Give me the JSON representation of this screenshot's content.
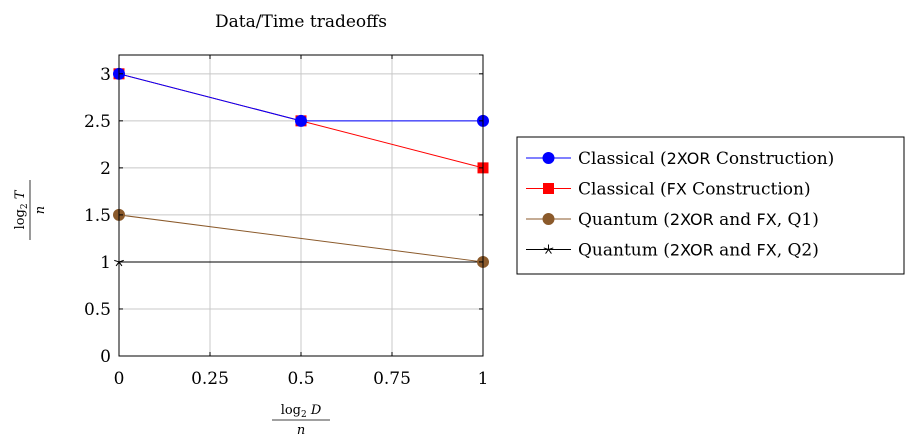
{
  "chart_data": {
    "type": "line",
    "title": "Data/Time tradeoffs",
    "xlabel": {
      "num": "log",
      "num_sub": "2",
      "num_var": "D",
      "den": "n"
    },
    "ylabel": {
      "num": "log",
      "num_sub": "2",
      "num_var": "T",
      "den": "n"
    },
    "xlim": [
      0,
      1
    ],
    "ylim": [
      0,
      3.2
    ],
    "xticks": [
      0,
      0.25,
      0.5,
      0.75,
      1
    ],
    "xtick_labels": [
      "0",
      "0.25",
      "0.5",
      "0.75",
      "1"
    ],
    "yticks": [
      0,
      0.5,
      1,
      1.5,
      2,
      2.5,
      3
    ],
    "ytick_labels": [
      "0",
      "0.5",
      "1",
      "1.5",
      "2",
      "2.5",
      "3"
    ],
    "grid": true,
    "legend_position": "right, outside",
    "series": [
      {
        "legend": [
          {
            "t": "Classical (",
            "f": "serif"
          },
          {
            "t": "2XOR",
            "f": "sans"
          },
          {
            "t": " Construction)",
            "f": "serif"
          }
        ],
        "color": "#0000ff",
        "marker": "circle",
        "x": [
          0,
          0.5,
          1
        ],
        "y": [
          3,
          2.5,
          2.5
        ]
      },
      {
        "legend": [
          {
            "t": "Classical (",
            "f": "serif"
          },
          {
            "t": "FX",
            "f": "sans"
          },
          {
            "t": " Construction)",
            "f": "serif"
          }
        ],
        "color": "#ff0000",
        "marker": "square",
        "x": [
          0,
          0.5,
          1
        ],
        "y": [
          3,
          2.5,
          2
        ]
      },
      {
        "legend": [
          {
            "t": "Quantum (",
            "f": "serif"
          },
          {
            "t": "2XOR",
            "f": "sans"
          },
          {
            "t": " and ",
            "f": "serif"
          },
          {
            "t": "FX",
            "f": "sans"
          },
          {
            "t": ", Q1)",
            "f": "serif"
          }
        ],
        "color": "#8b5a2b",
        "marker": "circle",
        "x": [
          0,
          1
        ],
        "y": [
          1.5,
          1
        ]
      },
      {
        "legend": [
          {
            "t": "Quantum (",
            "f": "serif"
          },
          {
            "t": "2XOR",
            "f": "sans"
          },
          {
            "t": " and ",
            "f": "serif"
          },
          {
            "t": "FX",
            "f": "sans"
          },
          {
            "t": ", Q2)",
            "f": "serif"
          }
        ],
        "color": "#000000",
        "marker": "star",
        "x": [
          0,
          1
        ],
        "y": [
          1,
          1
        ]
      }
    ]
  }
}
